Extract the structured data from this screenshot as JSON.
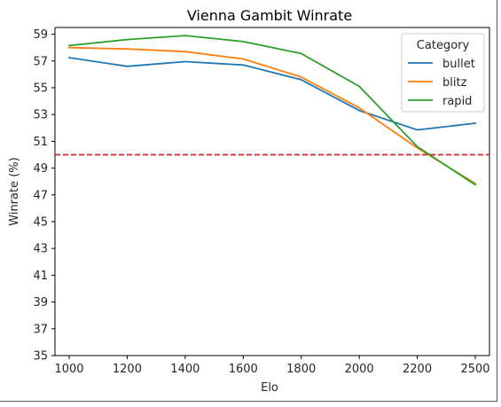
{
  "chart_data": {
    "type": "line",
    "title": "Vienna Gambit Winrate",
    "xlabel": "Elo",
    "ylabel": "Winrate (%)",
    "x": [
      1000,
      1200,
      1400,
      1600,
      1800,
      2000,
      2200,
      2500
    ],
    "x_ticks": [
      1000,
      1200,
      1400,
      1600,
      1800,
      2000,
      2200,
      2500
    ],
    "y_ticks": [
      35,
      37,
      39,
      41,
      43,
      45,
      47,
      49,
      51,
      53,
      55,
      57,
      59
    ],
    "ylim": [
      35,
      59.5
    ],
    "series": [
      {
        "name": "bullet",
        "color": "#1f77b4",
        "values": [
          57.25,
          56.6,
          56.95,
          56.7,
          55.6,
          53.3,
          51.85,
          52.35
        ]
      },
      {
        "name": "blitz",
        "color": "#ff7f0e",
        "values": [
          58.0,
          57.9,
          57.7,
          57.15,
          55.8,
          53.5,
          50.5,
          47.85
        ]
      },
      {
        "name": "rapid",
        "color": "#2ca02c",
        "values": [
          58.15,
          58.6,
          58.9,
          58.45,
          57.55,
          55.1,
          50.6,
          47.75
        ]
      }
    ],
    "reference_line": {
      "y": 50,
      "color": "#d62728",
      "style": "dashed"
    },
    "legend": {
      "title": "Category",
      "position": "top-right"
    },
    "grid": false
  }
}
